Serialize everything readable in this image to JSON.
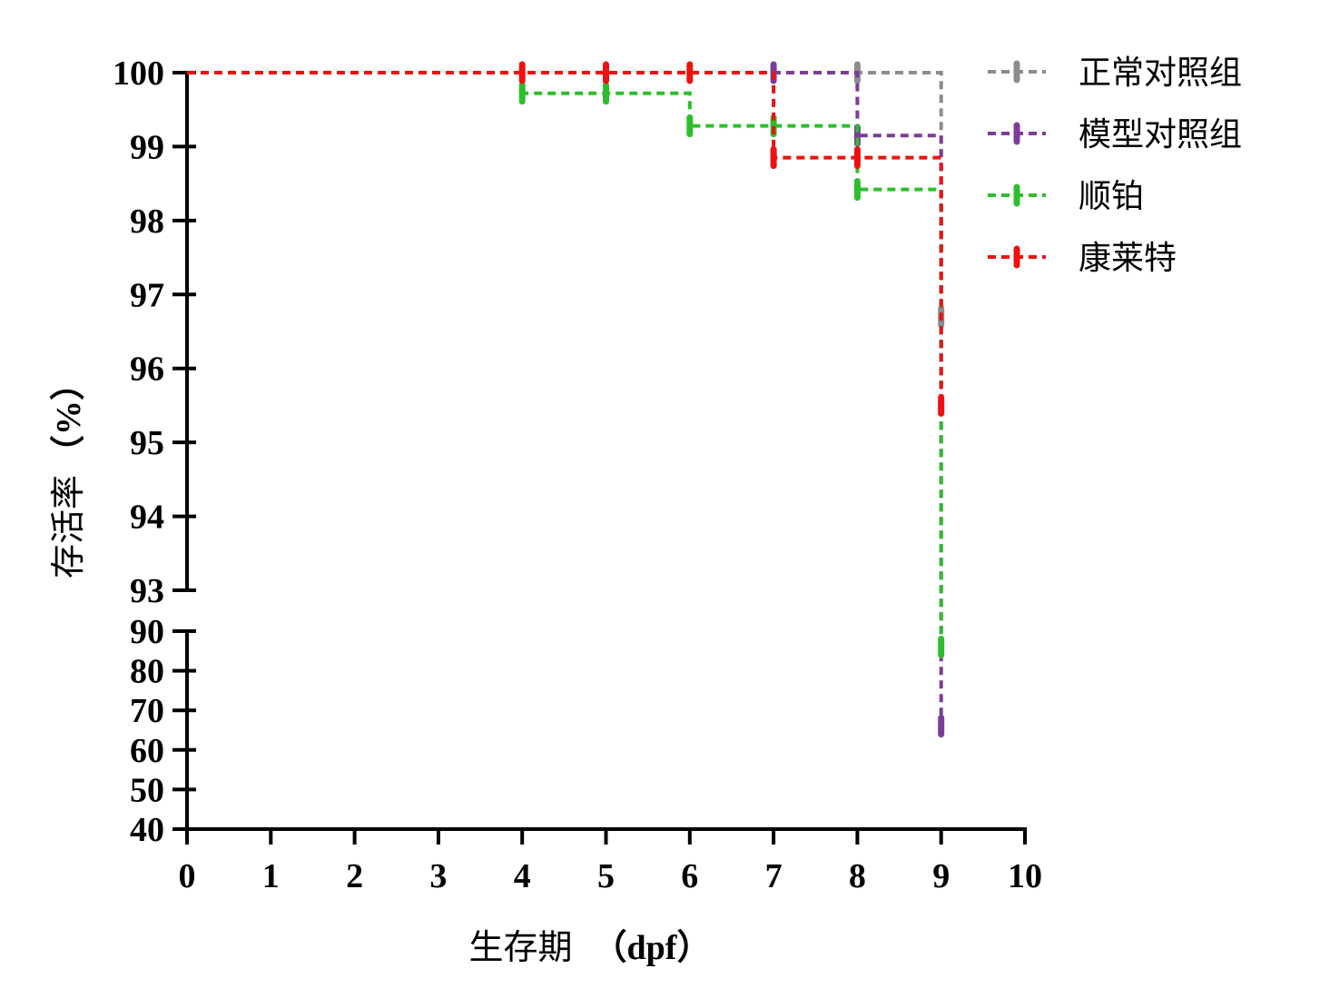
{
  "chart_data": {
    "type": "line",
    "subtype": "kaplan-meier-step",
    "title": "",
    "xlabel_cn": "生存期",
    "xlabel_unit": "（dpf）",
    "ylabel_cn": "存活率",
    "ylabel_unit": "（%）",
    "xlim": [
      0,
      10
    ],
    "x_ticks": [
      "0",
      "1",
      "2",
      "3",
      "4",
      "5",
      "6",
      "7",
      "8",
      "9",
      "10"
    ],
    "y_axis_break": true,
    "y_upper_range": [
      93,
      100
    ],
    "y_upper_ticks": [
      "93",
      "94",
      "95",
      "96",
      "97",
      "98",
      "99",
      "100"
    ],
    "y_lower_range": [
      40,
      90
    ],
    "y_lower_ticks": [
      "40",
      "50",
      "60",
      "70",
      "80",
      "90"
    ],
    "grid": false,
    "legend_position": "top-right",
    "series": [
      {
        "name": "正常对照组",
        "color": "#8c8c8c",
        "steps": [
          [
            0,
            100
          ],
          [
            8,
            100
          ],
          [
            9,
            96.7
          ]
        ],
        "censor_marks": [
          [
            8,
            100
          ],
          [
            9,
            96.7
          ]
        ]
      },
      {
        "name": "模型对照组",
        "color": "#7d3c98",
        "steps": [
          [
            0,
            100
          ],
          [
            7,
            100
          ],
          [
            8,
            99.15
          ],
          [
            9,
            66
          ]
        ],
        "censor_marks": [
          [
            7,
            100
          ],
          [
            8,
            99.15
          ],
          [
            9,
            66
          ]
        ]
      },
      {
        "name": "顺铂",
        "color": "#2dbe2d",
        "steps": [
          [
            0,
            100
          ],
          [
            4,
            99.72
          ],
          [
            6,
            99.28
          ],
          [
            8,
            98.42
          ],
          [
            9,
            86
          ]
        ],
        "censor_marks": [
          [
            4,
            99.72
          ],
          [
            5,
            99.72
          ],
          [
            6,
            99.28
          ],
          [
            7,
            99.28
          ],
          [
            8,
            98.42
          ],
          [
            9,
            86
          ]
        ]
      },
      {
        "name": "康莱特",
        "color": "#ee1111",
        "steps": [
          [
            0,
            100
          ],
          [
            7,
            98.85
          ],
          [
            9,
            95.5
          ]
        ],
        "censor_marks": [
          [
            4,
            100
          ],
          [
            5,
            100
          ],
          [
            6,
            100
          ],
          [
            7,
            98.85
          ],
          [
            8,
            98.85
          ],
          [
            9,
            95.5
          ]
        ]
      }
    ]
  }
}
